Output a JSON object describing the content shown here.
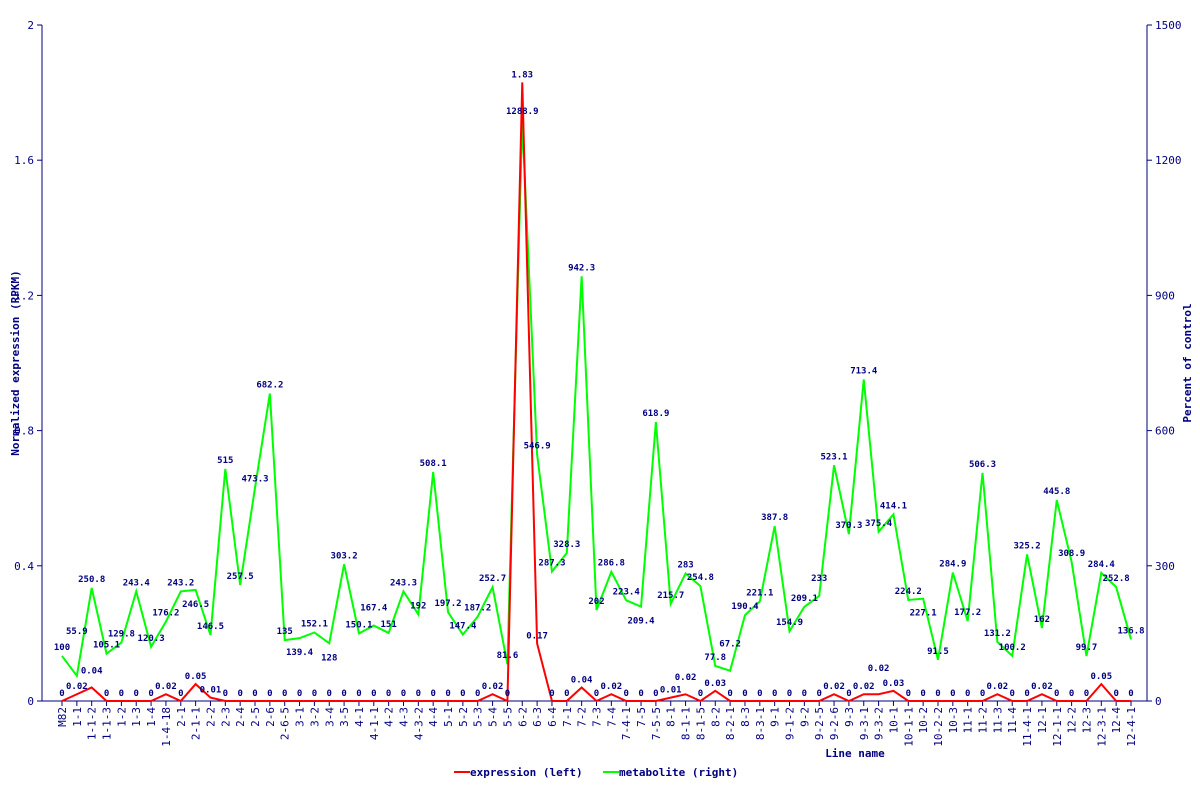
{
  "chart_data": {
    "type": "line",
    "xlabel": "Line name",
    "ylabel": "Normalized expression (RPKM)",
    "y2label": "Percent of control",
    "ylim": [
      0,
      2
    ],
    "y2lim": [
      0,
      1500
    ],
    "yticks": [
      "0",
      "0.4",
      "0.8",
      "1.2",
      "1.6",
      "2"
    ],
    "y2ticks": [
      "0",
      "300",
      "600",
      "900",
      "1200",
      "1500"
    ],
    "legend_position": "bottom",
    "categories": [
      "M82",
      "1-1",
      "1-1-2",
      "1-1-3",
      "1-2",
      "1-3",
      "1-4",
      "1-4-18",
      "2-1",
      "2-1-1",
      "2-2",
      "2-3",
      "2-4",
      "2-5",
      "2-6",
      "2-6-5",
      "3-1",
      "3-2",
      "3-4",
      "3-5",
      "4-1",
      "4-1-1",
      "4-2",
      "4-3",
      "4-3-2",
      "4-4",
      "5-1",
      "5-2",
      "5-3",
      "5-4",
      "5-5",
      "6-2",
      "6-3",
      "6-4",
      "7-1",
      "7-2",
      "7-3",
      "7-4",
      "7-4-1",
      "7-5",
      "7-5-5",
      "8-1",
      "8-1-1",
      "8-1-5",
      "8-2",
      "8-2-1",
      "8-3",
      "8-3-1",
      "9-1",
      "9-1-2",
      "9-2",
      "9-2-5",
      "9-2-6",
      "9-3",
      "9-3-1",
      "9-3-2",
      "10-1",
      "10-1-1",
      "10-2",
      "10-2-2",
      "10-3",
      "11-1",
      "11-2",
      "11-3",
      "11-4",
      "11-4-1",
      "12-1",
      "12-1-1",
      "12-2",
      "12-3",
      "12-3-1",
      "12-4",
      "12-4-1"
    ],
    "series": [
      {
        "name": "expression (left)",
        "axis": "left",
        "color": "#ff0000",
        "values": [
          0,
          0.02,
          0.04,
          0,
          0,
          0,
          0,
          0.02,
          0,
          0.05,
          0.01,
          0,
          0,
          0,
          0,
          0,
          0,
          0,
          0,
          0,
          0,
          0,
          0,
          0,
          0,
          0,
          0,
          0,
          0,
          0.02,
          0,
          1.83,
          0.17,
          0,
          0,
          0.04,
          0,
          0.02,
          0,
          0,
          0,
          0.01,
          0.02,
          0,
          0.03,
          0,
          0,
          0,
          0,
          0,
          0,
          0,
          0.02,
          0,
          0.02,
          0.02,
          0.03,
          0,
          0,
          0,
          0,
          0,
          0,
          0.02,
          0,
          0,
          0.02,
          0,
          0,
          0,
          0.05,
          0,
          0
        ]
      },
      {
        "name": "metabolite (right)",
        "axis": "right",
        "color": "#00ff00",
        "values": [
          100,
          55.9,
          250.8,
          105.1,
          129.8,
          243.4,
          120.3,
          176.2,
          243.2,
          246.5,
          146.5,
          515,
          257.5,
          473.3,
          682.2,
          135,
          139.4,
          152.1,
          128,
          303.2,
          150.1,
          167.4,
          151,
          243.3,
          192,
          508.1,
          197.2,
          147.4,
          187.2,
          252.7,
          81.6,
          1288.9,
          546.9,
          287.3,
          328.3,
          942.3,
          202,
          286.8,
          223.4,
          209.4,
          618.9,
          215.7,
          283,
          254.8,
          77.8,
          67.2,
          190.4,
          221.1,
          387.8,
          154.9,
          209.1,
          233,
          523.1,
          370.3,
          713.4,
          375.4,
          414.1,
          224.2,
          227.1,
          91.5,
          284.9,
          177.2,
          506.3,
          131.2,
          100.2,
          325.2,
          162,
          445.8,
          308.9,
          99.7,
          284.4,
          252.8,
          136.8
        ]
      }
    ]
  }
}
